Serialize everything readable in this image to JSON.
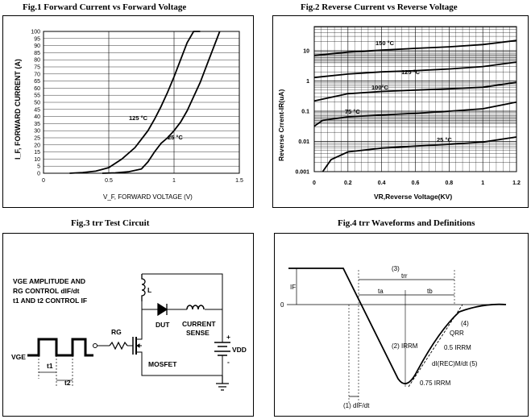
{
  "fig1": {
    "title": "Fig.1  Forward Current vs Forward Voltage",
    "ylabel": "I_F, FORWARD CURRENT (A)",
    "xlabel": "V_F, FORWARD VOLTAGE (V)",
    "chart_data": {
      "type": "line",
      "xlim": [
        0,
        1.5
      ],
      "ylim": [
        0,
        100
      ],
      "x_ticks": [
        0,
        0.5,
        1,
        1.5
      ],
      "y_ticks": [
        0,
        5,
        10,
        15,
        20,
        25,
        30,
        35,
        40,
        45,
        50,
        55,
        60,
        65,
        70,
        75,
        80,
        85,
        90,
        95,
        100
      ],
      "series": [
        {
          "name": "125 °C",
          "x": [
            0.2,
            0.3,
            0.4,
            0.5,
            0.6,
            0.7,
            0.75,
            0.8,
            0.85,
            0.9,
            0.95,
            1.0,
            1.05,
            1.1,
            1.15,
            1.2
          ],
          "y": [
            0,
            0.5,
            1.5,
            4,
            10,
            18,
            24,
            30,
            38,
            47,
            57,
            68,
            80,
            92,
            100,
            100
          ]
        },
        {
          "name": "25 °C",
          "x": [
            0.45,
            0.55,
            0.65,
            0.75,
            0.8,
            0.85,
            0.9,
            0.95,
            1.0,
            1.05,
            1.1,
            1.15,
            1.2,
            1.25,
            1.3,
            1.35
          ],
          "y": [
            0,
            0.3,
            1,
            3,
            8,
            15,
            21,
            25,
            30,
            36,
            44,
            54,
            64,
            76,
            88,
            100
          ]
        }
      ]
    }
  },
  "fig2": {
    "title": "Fig.2  Reverse Current vs Reverse Voltage",
    "ylabel": "Reverse Crrent-IR(uA)",
    "xlabel": "VR,Reverse Voltage(KV)",
    "chart_data": {
      "type": "line",
      "xlim": [
        0,
        1.2
      ],
      "ylim_log10": [
        -3,
        1.8
      ],
      "x_ticks": [
        "0",
        "0.2",
        "0.4",
        "0.6",
        "0.8",
        "1",
        "1.2"
      ],
      "y_ticks": [
        "0.001",
        "0.01",
        "0.1",
        "1",
        "10"
      ],
      "series": [
        {
          "name": "150 °C",
          "x": [
            0,
            0.2,
            0.4,
            0.6,
            0.8,
            1.0,
            1.2
          ],
          "y": [
            7,
            9,
            10.5,
            12,
            13.5,
            16,
            22
          ]
        },
        {
          "name": "125 °C",
          "x": [
            0,
            0.2,
            0.4,
            0.6,
            0.8,
            1.0,
            1.2
          ],
          "y": [
            1.3,
            1.7,
            2.0,
            2.2,
            2.5,
            3.0,
            4.2
          ]
        },
        {
          "name": "100°C",
          "x": [
            0,
            0.2,
            0.4,
            0.6,
            0.8,
            1.0,
            1.2
          ],
          "y": [
            0.22,
            0.38,
            0.45,
            0.5,
            0.55,
            0.62,
            0.9
          ]
        },
        {
          "name": "75 °C",
          "x": [
            0,
            0.05,
            0.2,
            0.4,
            0.6,
            0.8,
            1.0,
            1.2
          ],
          "y": [
            0.032,
            0.05,
            0.065,
            0.075,
            0.085,
            0.1,
            0.12,
            0.2
          ]
        },
        {
          "name": "25 °C",
          "x": [
            0.05,
            0.1,
            0.2,
            0.4,
            0.6,
            0.8,
            1.0,
            1.2
          ],
          "y": [
            0.001,
            0.0025,
            0.0045,
            0.006,
            0.007,
            0.008,
            0.0095,
            0.014
          ]
        }
      ]
    }
  },
  "fig3": {
    "title": "Fig.3  trr Test Circuit",
    "note_lines": [
      "VGE AMPLITUDE AND",
      "RG CONTROL dIF/dt",
      "t1 AND t2 CONTROL IF"
    ],
    "labels": {
      "vge": "VGE",
      "rg": "RG",
      "l": "L",
      "dut": "DUT",
      "current": "CURRENT",
      "sense": "SENSE",
      "mosfet": "MOSFET",
      "vdd": "VDD",
      "plus": "+",
      "minus": "-",
      "t1": "t1",
      "t2": "t2"
    }
  },
  "fig4": {
    "title": "Fig.4 trr Waveforms and Definitions",
    "labels": {
      "n3": "(3)",
      "trr": "trr",
      "ta": "ta",
      "tb": "tb",
      "if": "IF",
      "zero": "0",
      "n2": "(2) IRRM",
      "n4": "(4)",
      "qrr": "QRR",
      "half": "0.5 IRRM",
      "slope": "dI(REC)M/dt  (5)",
      "p75": "0.75 IRRM",
      "n1": "(1) dIF/dt"
    }
  }
}
